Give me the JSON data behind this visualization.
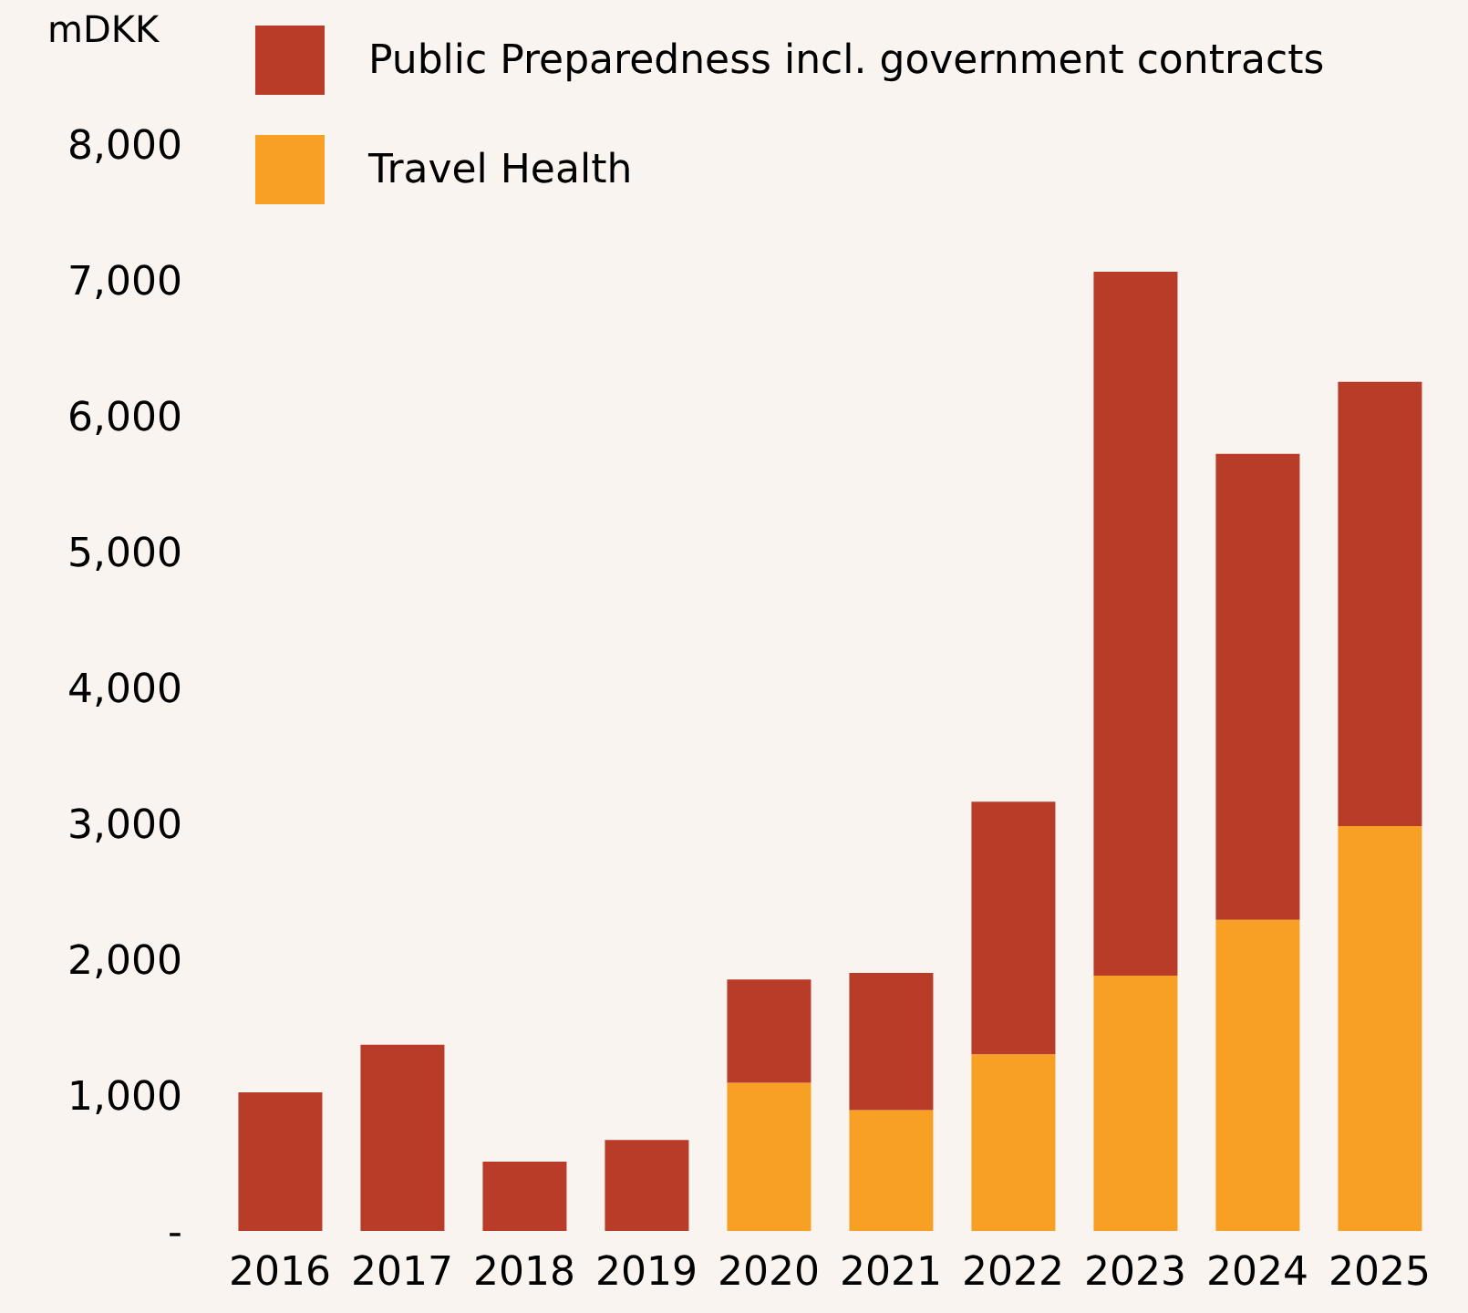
{
  "chart_data": {
    "type": "bar",
    "stacked": true,
    "ylabel": "mDKK",
    "categories": [
      "2016",
      "2017",
      "2018",
      "2019",
      "2020",
      "2021",
      "2022",
      "2023",
      "2024",
      "2025"
    ],
    "series": [
      {
        "name": "Travel Health",
        "color": "#f7a023",
        "values": [
          0,
          0,
          0,
          0,
          1090,
          890,
          1300,
          1880,
          2290,
          2980
        ]
      },
      {
        "name": "Public Preparedness incl. government contracts",
        "color": "#b83c28",
        "values": [
          1020,
          1370,
          510,
          670,
          760,
          1010,
          1860,
          5180,
          3430,
          3270
        ]
      }
    ],
    "ylim": [
      0,
      8000
    ],
    "yticks": [
      {
        "value": 0,
        "label": "-"
      },
      {
        "value": 1000,
        "label": "1,000"
      },
      {
        "value": 2000,
        "label": "2,000"
      },
      {
        "value": 3000,
        "label": "3,000"
      },
      {
        "value": 4000,
        "label": "4,000"
      },
      {
        "value": 5000,
        "label": "5,000"
      },
      {
        "value": 6000,
        "label": "6,000"
      },
      {
        "value": 7000,
        "label": "7,000"
      },
      {
        "value": 8000,
        "label": "8,000"
      }
    ],
    "grid": false,
    "legend": "top left"
  }
}
